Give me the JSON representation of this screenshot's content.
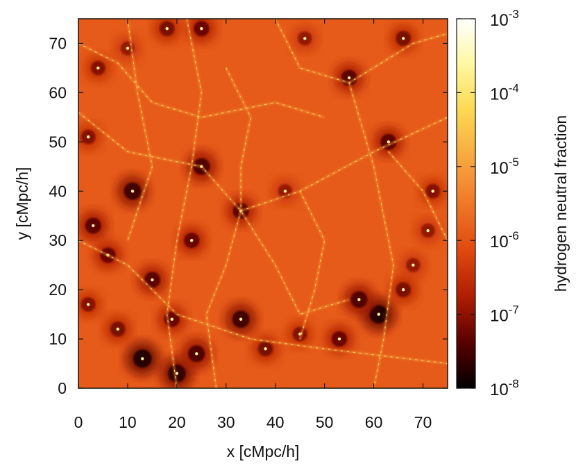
{
  "chart_data": {
    "type": "heatmap",
    "title": "",
    "xlabel": "x [cMpc/h]",
    "ylabel": "y [cMpc/h]",
    "xlim": [
      0,
      75
    ],
    "ylim": [
      0,
      75
    ],
    "x_ticks": [
      0,
      10,
      20,
      30,
      40,
      50,
      60,
      70
    ],
    "y_ticks": [
      0,
      10,
      20,
      30,
      40,
      50,
      60,
      70
    ],
    "x_tick_labels": [
      "0",
      "10",
      "20",
      "30",
      "40",
      "50",
      "60",
      "70"
    ],
    "y_tick_labels": [
      "0",
      "10",
      "20",
      "30",
      "40",
      "50",
      "60",
      "70"
    ],
    "colorbar": {
      "label": "hydrogen neutral fraction",
      "scale": "log",
      "range": [
        1e-08,
        0.001
      ],
      "ticks": [
        {
          "value": 0.001,
          "base": "10",
          "exp": "-3"
        },
        {
          "value": 0.0001,
          "base": "10",
          "exp": "-4"
        },
        {
          "value": 1e-05,
          "base": "10",
          "exp": "-5"
        },
        {
          "value": 1e-06,
          "base": "10",
          "exp": "-6"
        },
        {
          "value": 1e-07,
          "base": "10",
          "exp": "-7"
        },
        {
          "value": 1e-08,
          "base": "10",
          "exp": "-8"
        }
      ],
      "colormap": [
        "#000000",
        "#5a0000",
        "#b01e00",
        "#e04a10",
        "#f07828",
        "#f8a840",
        "#fcd850",
        "#fff7a0",
        "#ffffff"
      ]
    },
    "background_log10_fraction": -5.9,
    "low_fraction_regions": [
      {
        "x": 3,
        "y": 33,
        "log10": -7.4
      },
      {
        "x": 6,
        "y": 27,
        "log10": -7.3
      },
      {
        "x": 11,
        "y": 40,
        "log10": -7.6
      },
      {
        "x": 15,
        "y": 22,
        "log10": -7.4
      },
      {
        "x": 19,
        "y": 14,
        "log10": -7.3
      },
      {
        "x": 13,
        "y": 6,
        "log10": -7.8
      },
      {
        "x": 20,
        "y": 3,
        "log10": -7.7
      },
      {
        "x": 24,
        "y": 7,
        "log10": -7.5
      },
      {
        "x": 25,
        "y": 45,
        "log10": -7.5
      },
      {
        "x": 23,
        "y": 30,
        "log10": -7.3
      },
      {
        "x": 33,
        "y": 36,
        "log10": -7.4
      },
      {
        "x": 33,
        "y": 14,
        "log10": -7.6
      },
      {
        "x": 38,
        "y": 8,
        "log10": -7.2
      },
      {
        "x": 18,
        "y": 73,
        "log10": -7.2
      },
      {
        "x": 25,
        "y": 73,
        "log10": -7.3
      },
      {
        "x": 10,
        "y": 69,
        "log10": -7.0
      },
      {
        "x": 4,
        "y": 65,
        "log10": -7.1
      },
      {
        "x": 46,
        "y": 71,
        "log10": -7.0
      },
      {
        "x": 55,
        "y": 63,
        "log10": -7.4
      },
      {
        "x": 66,
        "y": 71,
        "log10": -7.2
      },
      {
        "x": 63,
        "y": 50,
        "log10": -7.4
      },
      {
        "x": 61,
        "y": 15,
        "log10": -7.8
      },
      {
        "x": 57,
        "y": 18,
        "log10": -7.5
      },
      {
        "x": 53,
        "y": 10,
        "log10": -7.3
      },
      {
        "x": 66,
        "y": 20,
        "log10": -7.2
      },
      {
        "x": 72,
        "y": 40,
        "log10": -7.1
      },
      {
        "x": 71,
        "y": 32,
        "log10": -7.0
      },
      {
        "x": 2,
        "y": 51,
        "log10": -7.1
      },
      {
        "x": 45,
        "y": 11,
        "log10": -7.1
      },
      {
        "x": 2,
        "y": 17,
        "log10": -7.1
      },
      {
        "x": 68,
        "y": 25,
        "log10": -7.0
      },
      {
        "x": 42,
        "y": 40,
        "log10": -7.0
      },
      {
        "x": 8,
        "y": 12,
        "log10": -7.2
      }
    ],
    "high_fraction_filaments": [
      [
        [
          0,
          56
        ],
        [
          10,
          48
        ],
        [
          25,
          45
        ],
        [
          33,
          36
        ],
        [
          40,
          25
        ],
        [
          45,
          15
        ],
        [
          55,
          18
        ]
      ],
      [
        [
          22,
          75
        ],
        [
          25,
          60
        ],
        [
          23,
          45
        ],
        [
          20,
          30
        ],
        [
          18,
          15
        ],
        [
          20,
          0
        ]
      ],
      [
        [
          33,
          36
        ],
        [
          45,
          40
        ],
        [
          60,
          48
        ],
        [
          75,
          55
        ]
      ],
      [
        [
          55,
          62
        ],
        [
          60,
          45
        ],
        [
          64,
          25
        ],
        [
          62,
          10
        ],
        [
          60,
          0
        ]
      ],
      [
        [
          0,
          30
        ],
        [
          10,
          25
        ],
        [
          20,
          15
        ],
        [
          35,
          10
        ],
        [
          50,
          8
        ],
        [
          75,
          5
        ]
      ],
      [
        [
          40,
          75
        ],
        [
          45,
          65
        ],
        [
          55,
          62
        ],
        [
          68,
          70
        ],
        [
          75,
          72
        ]
      ],
      [
        [
          10,
          75
        ],
        [
          12,
          60
        ],
        [
          15,
          45
        ],
        [
          10,
          30
        ]
      ],
      [
        [
          33,
          36
        ],
        [
          30,
          25
        ],
        [
          26,
          15
        ],
        [
          28,
          0
        ]
      ],
      [
        [
          45,
          40
        ],
        [
          50,
          30
        ],
        [
          48,
          20
        ],
        [
          45,
          10
        ]
      ],
      [
        [
          63,
          48
        ],
        [
          70,
          40
        ],
        [
          75,
          30
        ]
      ],
      [
        [
          0,
          70
        ],
        [
          8,
          66
        ],
        [
          15,
          58
        ],
        [
          25,
          55
        ],
        [
          40,
          58
        ],
        [
          50,
          55
        ]
      ],
      [
        [
          30,
          65
        ],
        [
          35,
          55
        ],
        [
          33,
          45
        ],
        [
          33,
          36
        ]
      ]
    ]
  }
}
